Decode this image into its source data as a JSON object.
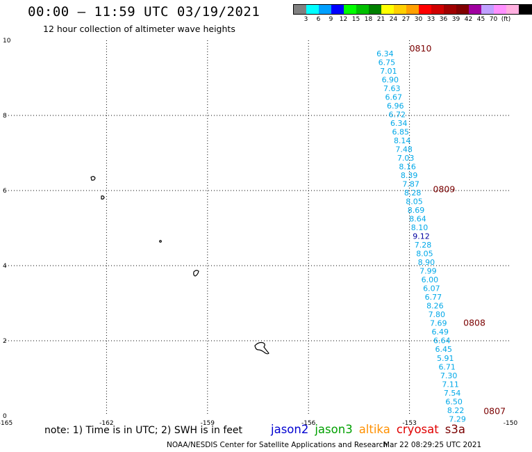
{
  "header": {
    "title": "00:00 — 11:59 UTC 03/19/2021",
    "subtitle": "12 hour collection of altimeter wave heights"
  },
  "legend": {
    "colors": [
      "#808080",
      "#00ffff",
      "#00a0ff",
      "#0000ff",
      "#00ff00",
      "#00c000",
      "#008000",
      "#ffff00",
      "#ffd000",
      "#ffa000",
      "#ff0000",
      "#d00000",
      "#a00000",
      "#800000",
      "#a000a0",
      "#c0a0ff",
      "#ff90ff",
      "#ffb0e0",
      "#000000"
    ],
    "labels": [
      "3",
      "6",
      "9",
      "12",
      "15",
      "18",
      "21",
      "24",
      "27",
      "30",
      "33",
      "36",
      "39",
      "42",
      "45",
      "70",
      "(ft)"
    ],
    "swh_color": "#00a8e8",
    "swh_highlight_color": "#0000a0",
    "pass_label_color": "#7a0000"
  },
  "map": {
    "x_ticks": [
      "-165",
      "-162",
      "-159",
      "-156",
      "-153",
      "-150"
    ],
    "y_ticks": [
      "10",
      "8",
      "6",
      "4",
      "2",
      "0"
    ],
    "xlim": [
      -165,
      -150
    ],
    "ylim": [
      0,
      10
    ]
  },
  "track": {
    "swh_values": [
      "6.34",
      "6.75",
      "7.01",
      "6.90",
      "7.63",
      "6.67",
      "6.96",
      "6.72",
      "6.34",
      "6.85",
      "8.14",
      "7.48",
      "7.03",
      "8.16",
      "8.39",
      "7.87",
      "8.28",
      "8.05",
      "8.69",
      "8.64",
      "8.10",
      "9.12",
      "7.28",
      "8.05",
      "8.90",
      "7.99",
      "6.00",
      "6.07",
      "6.77",
      "8.26",
      "7.80",
      "7.69",
      "6.49",
      "6.64",
      "6.45",
      "5.91",
      "6.71",
      "7.30",
      "7.11",
      "7.54",
      "6.50",
      "8.22",
      "7.29"
    ],
    "pass_times": [
      {
        "label": "0810",
        "lon": -153.0,
        "lat": 9.7
      },
      {
        "label": "0809",
        "lon": -152.3,
        "lat": 5.95
      },
      {
        "label": "0808",
        "lon": -151.4,
        "lat": 2.4
      },
      {
        "label": "0807",
        "lon": -150.8,
        "lat": 0.05
      }
    ]
  },
  "footer": {
    "note": "note: 1) Time is in UTC; 2) SWH is in feet",
    "satellites": [
      {
        "name": "jason2",
        "color": "#0000d0"
      },
      {
        "name": "jason3",
        "color": "#00a000"
      },
      {
        "name": "altika",
        "color": "#ff9000"
      },
      {
        "name": "cryosat",
        "color": "#e00000"
      },
      {
        "name": "s3a",
        "color": "#7a0000"
      }
    ],
    "credit": "NOAA/NESDIS Center for Satellite Applications and Research",
    "timestamp": "Mar 22 08:29:25 UTC 2021"
  }
}
